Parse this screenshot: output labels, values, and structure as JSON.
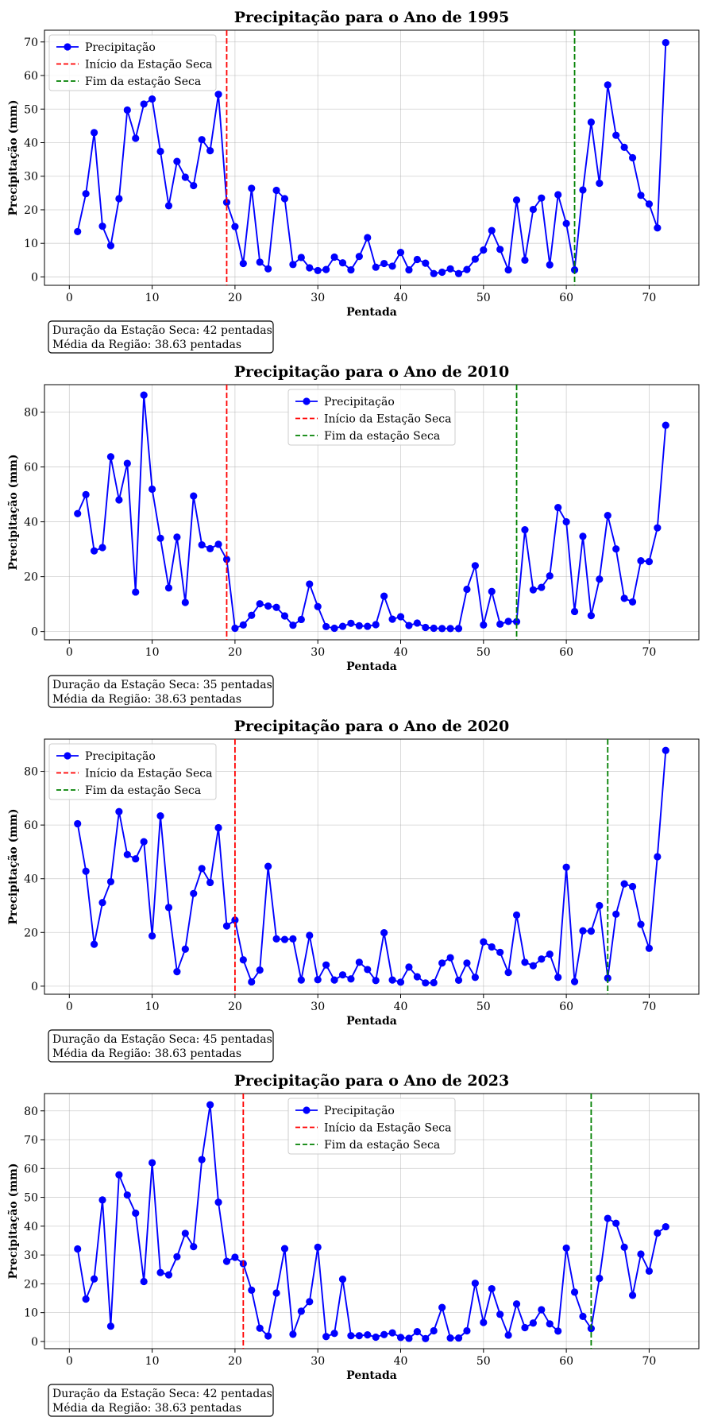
{
  "colors": {
    "series": "#0000ff",
    "dry_start": "#ff0000",
    "dry_end": "#008000",
    "grid": "#b0b0b0",
    "axes": "#000000",
    "legend_frame": "#cccccc"
  },
  "chart_data": [
    {
      "type": "line",
      "title": "Precipitação para o Ano de 1995",
      "xlabel": "Pentada",
      "ylabel": "Precipitação (mm)",
      "xlim": [
        -3,
        76
      ],
      "ylim": [
        -2.5,
        73.5
      ],
      "xticks": [
        0,
        10,
        20,
        30,
        40,
        50,
        60,
        70
      ],
      "yticks": [
        0,
        10,
        20,
        30,
        40,
        50,
        60,
        70
      ],
      "grid": true,
      "legend_position": "upper-left",
      "legend": [
        "Precipitação",
        "Início da Estação Seca",
        "Fim da estação Seca"
      ],
      "series": [
        {
          "name": "Precipitação",
          "x": [
            1,
            2,
            3,
            4,
            5,
            6,
            7,
            8,
            9,
            10,
            11,
            12,
            13,
            14,
            15,
            16,
            17,
            18,
            19,
            20,
            21,
            22,
            23,
            24,
            25,
            26,
            27,
            28,
            29,
            30,
            31,
            32,
            33,
            34,
            35,
            36,
            37,
            38,
            39,
            40,
            41,
            42,
            43,
            44,
            45,
            46,
            47,
            48,
            49,
            50,
            51,
            52,
            53,
            54,
            55,
            56,
            57,
            58,
            59,
            60,
            61,
            62,
            63,
            64,
            65,
            66,
            67,
            68,
            69,
            70,
            71,
            72
          ],
          "values": [
            13.5,
            24.8,
            43,
            15.1,
            9.3,
            23.3,
            49.7,
            41.3,
            51.5,
            53,
            37.4,
            21.2,
            34.4,
            29.7,
            27.2,
            40.9,
            37.6,
            54.4,
            22.2,
            15,
            4,
            26.4,
            4.4,
            2.4,
            25.8,
            23.3,
            3.7,
            5.8,
            2.7,
            1.9,
            2.2,
            5.9,
            4.2,
            2.1,
            6.1,
            11.7,
            2.9,
            4,
            3.2,
            7.3,
            2.1,
            5.2,
            4.1,
            1,
            1.4,
            2.4,
            1,
            2.2,
            5.3,
            8,
            13.8,
            8.2,
            2.1,
            22.9,
            5,
            20.1,
            23.5,
            3.6,
            24.5,
            15.9,
            2.1,
            25.9,
            46.1,
            27.9,
            57.2,
            42.2,
            38.6,
            35.5,
            24.3,
            21.7,
            14.6,
            69.8
          ]
        }
      ],
      "dry_start_x": 19,
      "dry_end_x": 61,
      "note_lines": [
        "Duração da Estação Seca: 42 pentadas",
        "Média da Região: 38.63 pentadas"
      ]
    },
    {
      "type": "line",
      "title": "Precipitação para o Ano de 2010",
      "xlabel": "Pentada",
      "ylabel": "Precipitação (mm)",
      "xlim": [
        -3,
        76
      ],
      "ylim": [
        -3,
        90
      ],
      "xticks": [
        0,
        10,
        20,
        30,
        40,
        50,
        60,
        70
      ],
      "yticks": [
        0,
        20,
        40,
        60,
        80
      ],
      "grid": true,
      "legend_position": "upper-center",
      "legend": [
        "Precipitação",
        "Início da Estação Seca",
        "Fim da estação Seca"
      ],
      "series": [
        {
          "name": "Precipitação",
          "x": [
            1,
            2,
            3,
            4,
            5,
            6,
            7,
            8,
            9,
            10,
            11,
            12,
            13,
            14,
            15,
            16,
            17,
            18,
            19,
            20,
            21,
            22,
            23,
            24,
            25,
            26,
            27,
            28,
            29,
            30,
            31,
            32,
            33,
            34,
            35,
            36,
            37,
            38,
            39,
            40,
            41,
            42,
            43,
            44,
            45,
            46,
            47,
            48,
            49,
            50,
            51,
            52,
            53,
            54,
            55,
            56,
            57,
            58,
            59,
            60,
            61,
            62,
            63,
            64,
            65,
            66,
            67,
            68,
            69,
            70,
            71,
            72
          ],
          "values": [
            43,
            49.9,
            29.4,
            30.6,
            63.7,
            48,
            61.3,
            14.4,
            86.2,
            51.9,
            34,
            15.9,
            34.4,
            10.6,
            49.4,
            31.6,
            30.2,
            31.8,
            26.3,
            1.2,
            2.4,
            5.9,
            10.1,
            9.3,
            8.8,
            5.7,
            2.3,
            4.4,
            17.3,
            9.1,
            1.8,
            1.2,
            1.9,
            3,
            2.1,
            1.9,
            2.5,
            12.9,
            4.5,
            5.4,
            2.2,
            3.1,
            1.5,
            1.2,
            1.1,
            1.1,
            1.1,
            15.4,
            24,
            2.4,
            14.6,
            2.7,
            3.7,
            3.6,
            37.1,
            15.2,
            16.1,
            20.3,
            45.2,
            40,
            7.3,
            34.7,
            5.8,
            19.1,
            42.3,
            30.1,
            12.1,
            10.8,
            25.8,
            25.5,
            37.8,
            75.2
          ]
        }
      ],
      "dry_start_x": 19,
      "dry_end_x": 54,
      "note_lines": [
        "Duração da Estação Seca: 35 pentadas",
        "Média da Região: 38.63 pentadas"
      ]
    },
    {
      "type": "line",
      "title": "Precipitação para o Ano de 2020",
      "xlabel": "Pentada",
      "ylabel": "Precipitação (mm)",
      "xlim": [
        -3,
        76
      ],
      "ylim": [
        -3,
        92
      ],
      "xticks": [
        0,
        10,
        20,
        30,
        40,
        50,
        60,
        70
      ],
      "yticks": [
        0,
        20,
        40,
        60,
        80
      ],
      "grid": true,
      "legend_position": "upper-left",
      "legend": [
        "Precipitação",
        "Início da Estação Seca",
        "Fim da estação Seca"
      ],
      "series": [
        {
          "name": "Precipitação",
          "x": [
            1,
            2,
            3,
            4,
            5,
            6,
            7,
            8,
            9,
            10,
            11,
            12,
            13,
            14,
            15,
            16,
            17,
            18,
            19,
            20,
            21,
            22,
            23,
            24,
            25,
            26,
            27,
            28,
            29,
            30,
            31,
            32,
            33,
            34,
            35,
            36,
            37,
            38,
            39,
            40,
            41,
            42,
            43,
            44,
            45,
            46,
            47,
            48,
            49,
            50,
            51,
            52,
            53,
            54,
            55,
            56,
            57,
            58,
            59,
            60,
            61,
            62,
            63,
            64,
            65,
            66,
            67,
            68,
            69,
            70,
            71,
            72
          ],
          "values": [
            60.5,
            42.8,
            15.6,
            31.1,
            38.9,
            65,
            49,
            47.4,
            53.8,
            18.7,
            63.4,
            29.3,
            5.4,
            13.8,
            34.5,
            43.8,
            38.6,
            59,
            22.4,
            24.6,
            9.8,
            1.6,
            6,
            44.6,
            17.6,
            17.4,
            17.6,
            2.3,
            18.9,
            2.4,
            7.9,
            2.3,
            4.2,
            2.7,
            8.9,
            6.2,
            2.1,
            19.9,
            2.3,
            1.5,
            7.1,
            3.5,
            1.2,
            1.3,
            8.6,
            10.6,
            2.2,
            8.6,
            3.3,
            16.5,
            14.6,
            12.6,
            5.1,
            26.5,
            8.9,
            7.6,
            10.1,
            11.9,
            3.3,
            44.3,
            1.7,
            20.6,
            20.5,
            30,
            3,
            26.8,
            38.1,
            37.1,
            23,
            14.1,
            48.2,
            87.8
          ]
        }
      ],
      "dry_start_x": 20,
      "dry_end_x": 65,
      "note_lines": [
        "Duração da Estação Seca: 45 pentadas",
        "Média da Região: 38.63 pentadas"
      ]
    },
    {
      "type": "line",
      "title": "Precipitação para o Ano de 2023",
      "xlabel": "Pentada",
      "ylabel": "Precipitação (mm)",
      "xlim": [
        -3,
        76
      ],
      "ylim": [
        -2.5,
        86
      ],
      "xticks": [
        0,
        10,
        20,
        30,
        40,
        50,
        60,
        70
      ],
      "yticks": [
        0,
        10,
        20,
        30,
        40,
        50,
        60,
        70,
        80
      ],
      "grid": true,
      "legend_position": "upper-center",
      "legend": [
        "Precipitação",
        "Início da Estação Seca",
        "Fim da estação Seca"
      ],
      "series": [
        {
          "name": "Precipitação",
          "x": [
            1,
            2,
            3,
            4,
            5,
            6,
            7,
            8,
            9,
            10,
            11,
            12,
            13,
            14,
            15,
            16,
            17,
            18,
            19,
            20,
            21,
            22,
            23,
            24,
            25,
            26,
            27,
            28,
            29,
            30,
            31,
            32,
            33,
            34,
            35,
            36,
            37,
            38,
            39,
            40,
            41,
            42,
            43,
            44,
            45,
            46,
            47,
            48,
            49,
            50,
            51,
            52,
            53,
            54,
            55,
            56,
            57,
            58,
            59,
            60,
            61,
            62,
            63,
            64,
            65,
            66,
            67,
            68,
            69,
            70,
            71,
            72
          ],
          "values": [
            32.1,
            14.7,
            21.7,
            49.1,
            5.3,
            57.8,
            50.8,
            44.5,
            20.8,
            62,
            23.9,
            23.1,
            29.4,
            37.5,
            32.9,
            63.1,
            82.1,
            48.3,
            27.8,
            29.2,
            27,
            17.8,
            4.6,
            1.9,
            16.8,
            32.2,
            2.5,
            10.5,
            13.8,
            32.7,
            1.7,
            2.8,
            21.6,
            2,
            2,
            2.3,
            1.5,
            2.4,
            3,
            1.4,
            1.1,
            3.4,
            1,
            3.7,
            11.8,
            1.2,
            1.2,
            3.7,
            20.2,
            6.6,
            18.3,
            9.4,
            2.2,
            13,
            4.8,
            6.4,
            11,
            6.1,
            3.6,
            32.4,
            17.1,
            8.7,
            4.5,
            21.9,
            42.7,
            41,
            32.7,
            16,
            30.3,
            24.4,
            37.6,
            39.8
          ]
        }
      ],
      "dry_start_x": 21,
      "dry_end_x": 63,
      "note_lines": [
        "Duração da Estação Seca: 42 pentadas",
        "Média da Região: 38.63 pentadas"
      ]
    }
  ]
}
